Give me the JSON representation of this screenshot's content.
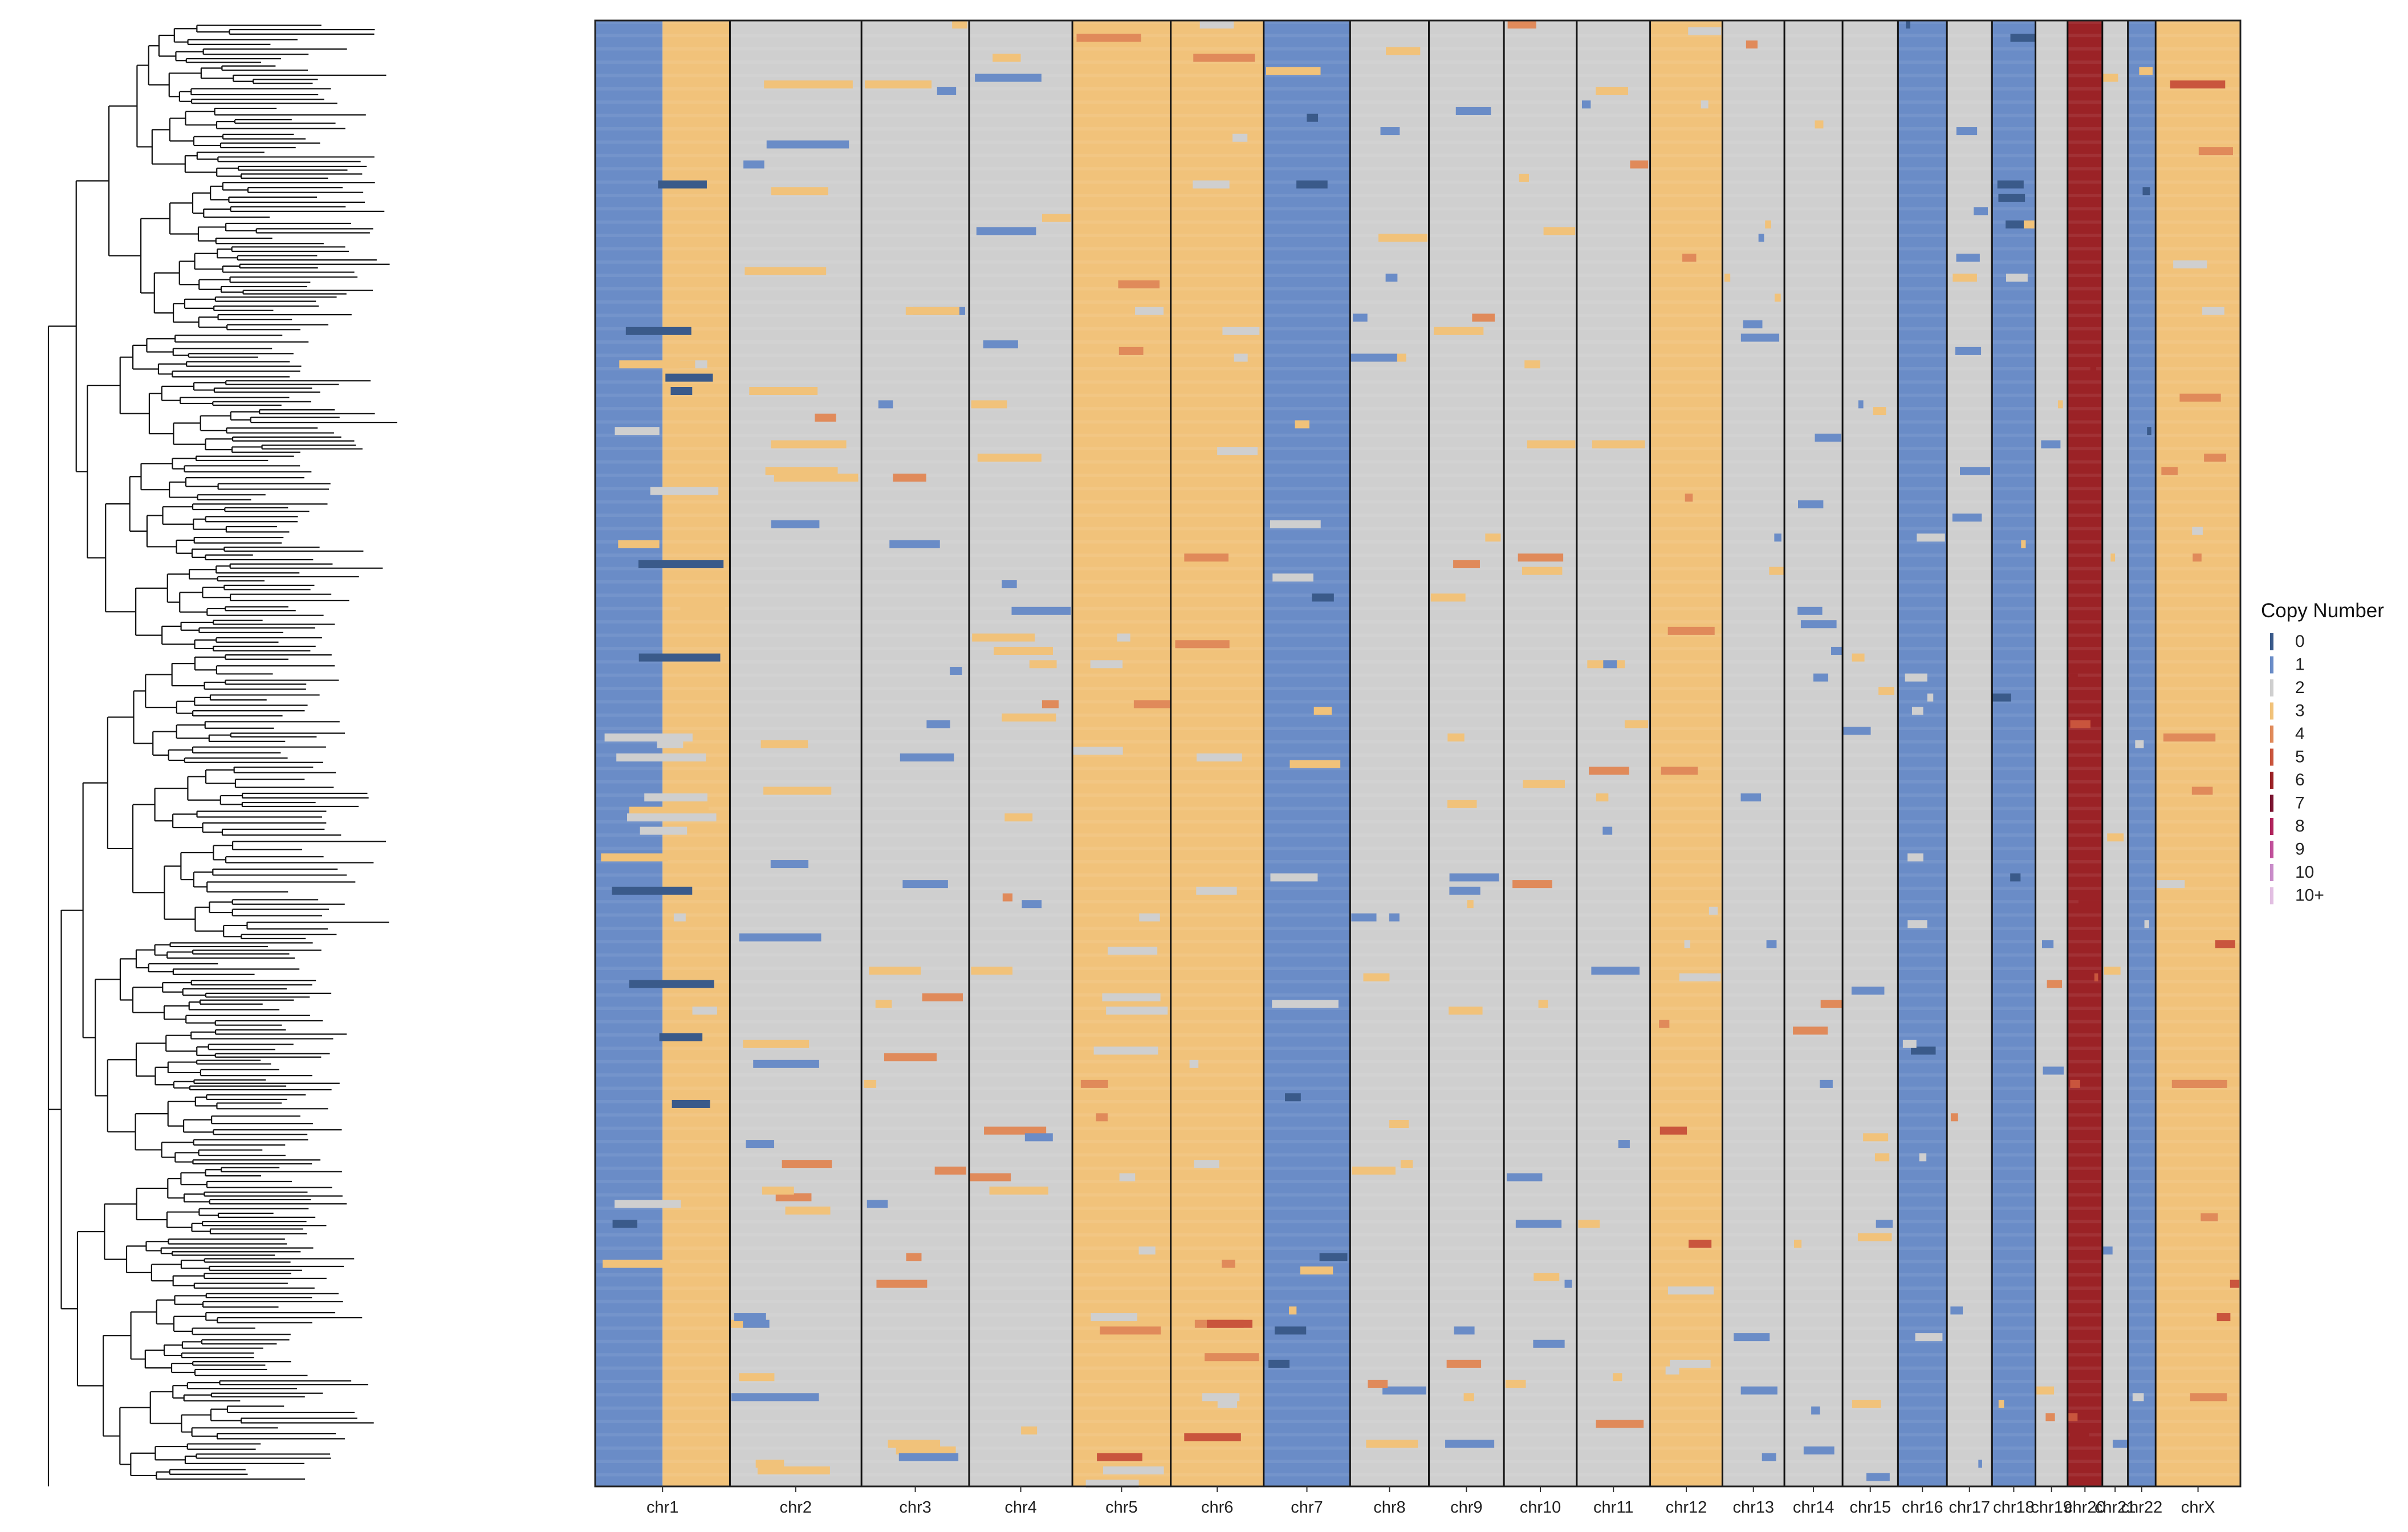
{
  "chart_data": {
    "type": "heatmap",
    "title": "",
    "xlabel": "",
    "ylabel": "",
    "dendrogram": "left",
    "categories": [
      "chr1",
      "chr2",
      "chr3",
      "chr4",
      "chr5",
      "chr6",
      "chr7",
      "chr8",
      "chr9",
      "chr10",
      "chr11",
      "chr12",
      "chr13",
      "chr14",
      "chr15",
      "chr16",
      "chr17",
      "chr18",
      "chr19",
      "chr20",
      "chr21",
      "chr22",
      "chrX"
    ],
    "relative_length": [
      248,
      242,
      198,
      190,
      181,
      171,
      159,
      145,
      138,
      134,
      135,
      133,
      114,
      107,
      102,
      90,
      83,
      80,
      59,
      64,
      47,
      51,
      156
    ],
    "dominant_copy_number": [
      1,
      2,
      2,
      2,
      3,
      3,
      1,
      2,
      2,
      2,
      2,
      3,
      2,
      2,
      2,
      1,
      2,
      1,
      2,
      6,
      2,
      1,
      3
    ],
    "arm_breakpoint_fraction": [
      0.5,
      0,
      0,
      0,
      0,
      0,
      0,
      0,
      0,
      0,
      0,
      0,
      0,
      0,
      0,
      0,
      0,
      0,
      0,
      0,
      0,
      0,
      0
    ],
    "p_arm_copy_number": [
      1,
      2,
      2,
      2,
      3,
      3,
      1,
      2,
      2,
      2,
      2,
      3,
      2,
      2,
      2,
      1,
      2,
      1,
      2,
      6,
      2,
      1,
      3
    ],
    "q_arm_copy_number": [
      3,
      2,
      2,
      2,
      3,
      3,
      1,
      2,
      2,
      2,
      2,
      3,
      2,
      2,
      2,
      1,
      2,
      1,
      2,
      6,
      2,
      1,
      3
    ],
    "legend": {
      "title": "Copy Number",
      "placement": "right",
      "items": [
        {
          "label": "0",
          "color": "#3a5a8a"
        },
        {
          "label": "1",
          "color": "#6a8cc7"
        },
        {
          "label": "2",
          "color": "#cfcfcf"
        },
        {
          "label": "3",
          "color": "#f1c27a"
        },
        {
          "label": "4",
          "color": "#e08a5a"
        },
        {
          "label": "5",
          "color": "#c9553d"
        },
        {
          "label": "6",
          "color": "#9b2226"
        },
        {
          "label": "7",
          "color": "#7a1430"
        },
        {
          "label": "8",
          "color": "#b0245c"
        },
        {
          "label": "9",
          "color": "#c0509a"
        },
        {
          "label": "10",
          "color": "#c98cc9"
        },
        {
          "label": "10+",
          "color": "#e2bfe2"
        }
      ]
    }
  }
}
